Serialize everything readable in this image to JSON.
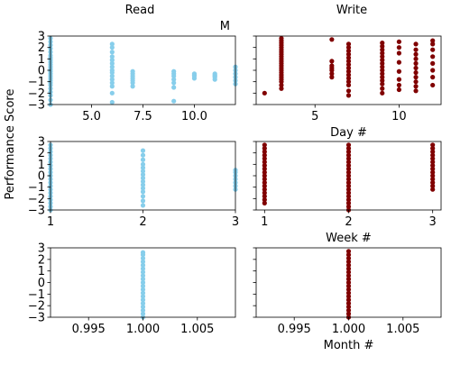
{
  "figure": {
    "ylabel": "Performance Score",
    "col_titles": [
      "Read",
      "Write"
    ],
    "colors": {
      "read": "#87ceeb",
      "write": "#800000"
    }
  },
  "chart_data": [
    {
      "id": "read-day",
      "type": "scatter",
      "series": [
        {
          "name": "Read"
        }
      ],
      "title": "M",
      "xlabel": "",
      "xlim": [
        3,
        12
      ],
      "ylim": [
        -3,
        3
      ],
      "xticks": [
        5,
        7.5,
        10
      ],
      "xticklabels": [
        "5.0",
        "7.5",
        "10.0"
      ],
      "yticks": [
        -3,
        -2,
        -1,
        0,
        1,
        2,
        3
      ],
      "yticklabels": [
        "−3",
        "−2",
        "−1",
        "0",
        "1",
        "2",
        "3"
      ],
      "color": "#87ceeb",
      "columns": [
        {
          "x": 3,
          "y": [
            -3.0,
            -2.6,
            -2.2,
            -1.9,
            -1.6,
            -1.3,
            -1.1,
            -0.9,
            -0.7,
            -0.5,
            -0.3,
            -0.1,
            0.1,
            0.3,
            0.5,
            0.7,
            0.9,
            1.1,
            1.3,
            1.6,
            1.9,
            2.2,
            2.5,
            2.8
          ]
        },
        {
          "x": 6,
          "y": [
            -2.8,
            -2.0,
            -1.4,
            -1.1,
            -0.8,
            -0.5,
            -0.2,
            0.0,
            0.3,
            0.6,
            0.9,
            1.2,
            1.6,
            2.0,
            2.3
          ]
        },
        {
          "x": 7,
          "y": [
            -1.4,
            -1.1,
            -0.9,
            -0.7,
            -0.5,
            -0.3,
            -0.1
          ]
        },
        {
          "x": 9,
          "y": [
            -2.7,
            -1.5,
            -1.1,
            -0.8,
            -0.5,
            -0.3,
            -0.1
          ]
        },
        {
          "x": 10,
          "y": [
            -0.7,
            -0.5,
            -0.4,
            -0.3
          ]
        },
        {
          "x": 11,
          "y": [
            -0.8,
            -0.6,
            -0.5,
            -0.4,
            -0.3
          ]
        },
        {
          "x": 12,
          "y": [
            -1.2,
            -0.9,
            -0.6,
            -0.3,
            0.0,
            0.3
          ]
        }
      ]
    },
    {
      "id": "write-day",
      "type": "scatter",
      "series": [
        {
          "name": "Write"
        }
      ],
      "title": "",
      "xlabel": "Day #",
      "xlim": [
        1.5,
        12.5
      ],
      "ylim": [
        -3,
        3
      ],
      "xticks": [
        5,
        10
      ],
      "xticklabels": [
        "5",
        "10"
      ],
      "yticks": [
        -3,
        -2,
        -1,
        0,
        1,
        2,
        3
      ],
      "yticklabels": [],
      "color": "#800000",
      "columns": [
        {
          "x": 2,
          "y": [
            -2.0
          ]
        },
        {
          "x": 3,
          "y": [
            -1.6,
            -1.3,
            -1.0,
            -0.8,
            -0.6,
            -0.4,
            -0.2,
            0.0,
            0.2,
            0.4,
            0.6,
            0.8,
            1.0,
            1.2,
            1.4,
            1.6,
            1.8,
            2.0,
            2.2,
            2.4,
            2.6,
            2.8
          ]
        },
        {
          "x": 6,
          "y": [
            -0.6,
            -0.3,
            0.0,
            0.2,
            0.4,
            0.8,
            2.7
          ]
        },
        {
          "x": 7,
          "y": [
            -2.2,
            -1.8,
            -1.3,
            -1.0,
            -0.7,
            -0.4,
            -0.1,
            0.2,
            0.5,
            0.8,
            1.1,
            1.4,
            1.7,
            2.0,
            2.3
          ]
        },
        {
          "x": 9,
          "y": [
            -2.0,
            -1.6,
            -1.2,
            -0.9,
            -0.6,
            -0.3,
            0.0,
            0.3,
            0.6,
            0.9,
            1.2,
            1.5,
            1.8,
            2.1,
            2.4
          ]
        },
        {
          "x": 10,
          "y": [
            -1.7,
            -1.3,
            -0.8,
            -0.1,
            0.7,
            1.5,
            2.0,
            2.5
          ]
        },
        {
          "x": 11,
          "y": [
            -1.8,
            -1.4,
            -1.0,
            -0.6,
            -0.2,
            0.2,
            0.6,
            1.0,
            1.4,
            1.8,
            2.3
          ]
        },
        {
          "x": 12,
          "y": [
            -1.3,
            -0.6,
            0.0,
            0.6,
            1.2,
            1.8,
            2.3,
            2.6
          ]
        }
      ]
    },
    {
      "id": "read-week",
      "type": "scatter",
      "series": [
        {
          "name": "Read"
        }
      ],
      "title": "",
      "xlabel": "",
      "xlim": [
        1,
        3
      ],
      "ylim": [
        -3,
        3
      ],
      "xticks": [
        1,
        2,
        3
      ],
      "xticklabels": [
        "1",
        "2",
        "3"
      ],
      "yticks": [
        -3,
        -2,
        -1,
        0,
        1,
        2,
        3
      ],
      "yticklabels": [
        "−3",
        "−2",
        "−1",
        "0",
        "1",
        "2",
        "3"
      ],
      "color": "#87ceeb",
      "columns": [
        {
          "x": 1,
          "y": [
            -3.0,
            -2.7,
            -2.4,
            -2.1,
            -1.8,
            -1.5,
            -1.2,
            -0.9,
            -0.6,
            -0.3,
            0.0,
            0.3,
            0.6,
            0.9,
            1.2,
            1.5,
            1.8,
            2.1,
            2.4,
            2.7
          ]
        },
        {
          "x": 2,
          "y": [
            -2.6,
            -2.2,
            -1.8,
            -1.4,
            -1.1,
            -0.8,
            -0.5,
            -0.2,
            0.1,
            0.4,
            0.7,
            1.0,
            1.4,
            1.8,
            2.2
          ]
        },
        {
          "x": 3,
          "y": [
            -1.2,
            -0.9,
            -0.6,
            -0.3,
            0.0,
            0.3,
            0.5
          ]
        }
      ]
    },
    {
      "id": "write-week",
      "type": "scatter",
      "series": [
        {
          "name": "Write"
        }
      ],
      "title": "",
      "xlabel": "Week #",
      "xlim": [
        0.9,
        3.1
      ],
      "ylim": [
        -3,
        3
      ],
      "xticks": [
        1,
        2,
        3
      ],
      "xticklabels": [
        "1",
        "2",
        "3"
      ],
      "yticks": [
        -3,
        -2,
        -1,
        0,
        1,
        2,
        3
      ],
      "yticklabels": [],
      "color": "#800000",
      "columns": [
        {
          "x": 1,
          "y": [
            -2.4,
            -2.1,
            -1.8,
            -1.5,
            -1.2,
            -0.9,
            -0.6,
            -0.3,
            0.0,
            0.3,
            0.6,
            0.9,
            1.2,
            1.5,
            1.8,
            2.1,
            2.4,
            2.7
          ]
        },
        {
          "x": 2,
          "y": [
            -3.0,
            -2.7,
            -2.4,
            -2.1,
            -1.8,
            -1.5,
            -1.2,
            -0.9,
            -0.6,
            -0.3,
            0.0,
            0.3,
            0.6,
            0.9,
            1.2,
            1.5,
            1.8,
            2.1,
            2.4,
            2.7
          ]
        },
        {
          "x": 3,
          "y": [
            -1.2,
            -0.9,
            -0.6,
            -0.3,
            0.0,
            0.3,
            0.6,
            0.9,
            1.2,
            1.5,
            1.8,
            2.1,
            2.4,
            2.7
          ]
        }
      ]
    },
    {
      "id": "read-month",
      "type": "scatter",
      "series": [
        {
          "name": "Read"
        }
      ],
      "title": "",
      "xlabel": "",
      "xlim": [
        0.9915,
        1.0085
      ],
      "ylim": [
        -3,
        3
      ],
      "xticks": [
        0.995,
        1.0,
        1.005
      ],
      "xticklabels": [
        "0.995",
        "1.000",
        "1.005"
      ],
      "yticks": [
        -3,
        -2,
        -1,
        0,
        1,
        2,
        3
      ],
      "yticklabels": [
        "−3",
        "−2",
        "−1",
        "0",
        "1",
        "2",
        "3"
      ],
      "color": "#87ceeb",
      "columns": [
        {
          "x": 1.0,
          "y": [
            -3.0,
            -2.7,
            -2.4,
            -2.1,
            -1.8,
            -1.5,
            -1.2,
            -0.9,
            -0.6,
            -0.3,
            0.0,
            0.3,
            0.6,
            0.9,
            1.2,
            1.5,
            1.8,
            2.1,
            2.4,
            2.6
          ]
        }
      ]
    },
    {
      "id": "write-month",
      "type": "scatter",
      "series": [
        {
          "name": "Write"
        }
      ],
      "title": "",
      "xlabel": "Month #",
      "xlim": [
        0.9915,
        1.0085
      ],
      "ylim": [
        -3,
        3
      ],
      "xticks": [
        0.995,
        1.0,
        1.005
      ],
      "xticklabels": [
        "0.995",
        "1.000",
        "1.005"
      ],
      "yticks": [
        -3,
        -2,
        -1,
        0,
        1,
        2,
        3
      ],
      "yticklabels": [],
      "color": "#800000",
      "columns": [
        {
          "x": 1.0,
          "y": [
            -3.0,
            -2.7,
            -2.4,
            -2.1,
            -1.8,
            -1.5,
            -1.2,
            -0.9,
            -0.6,
            -0.3,
            0.0,
            0.3,
            0.6,
            0.9,
            1.2,
            1.5,
            1.8,
            2.1,
            2.4,
            2.7
          ]
        }
      ]
    }
  ]
}
